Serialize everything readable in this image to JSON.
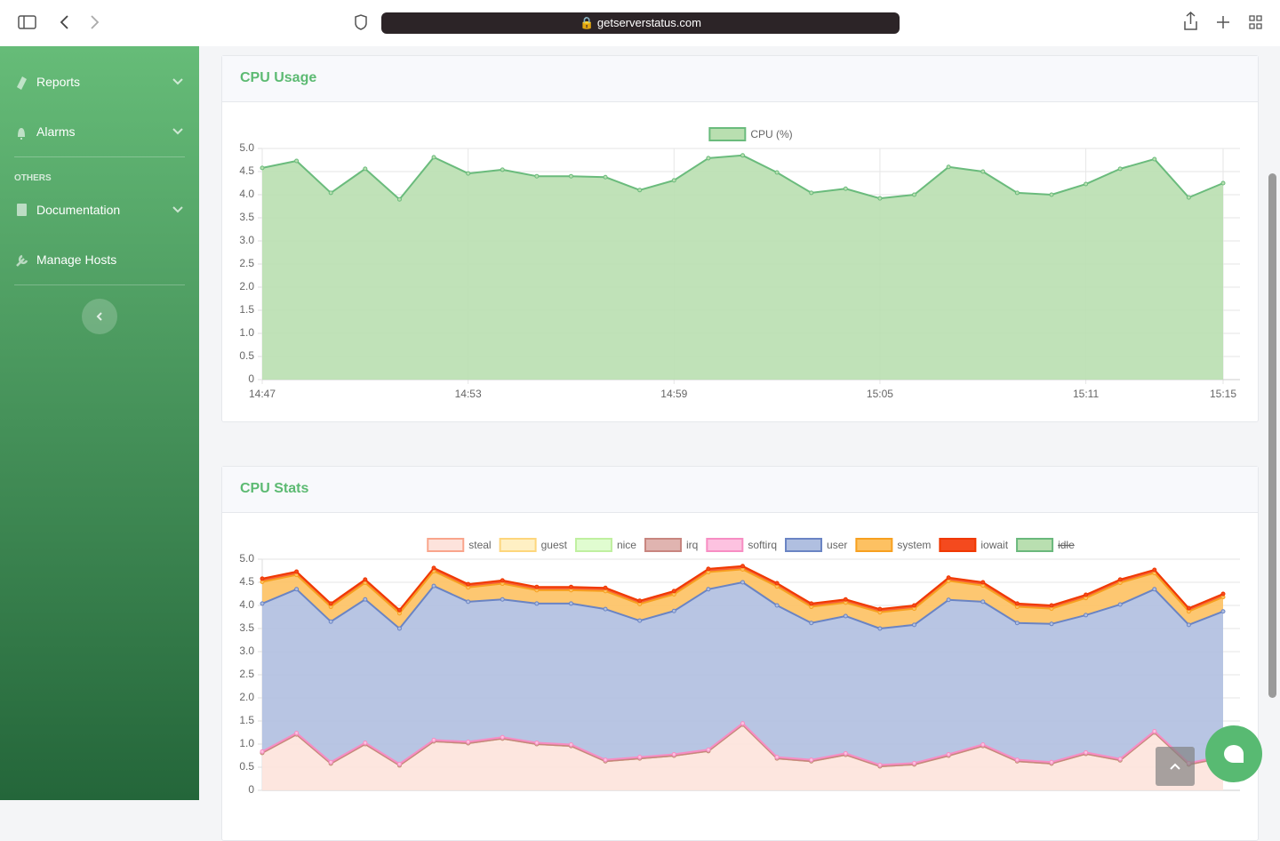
{
  "browser": {
    "url": "getserverstatus.com"
  },
  "sidebar": {
    "items": [
      {
        "label": "Reports"
      },
      {
        "label": "Alarms"
      }
    ],
    "section": "OTHERS",
    "others": [
      {
        "label": "Documentation"
      },
      {
        "label": "Manage Hosts"
      }
    ]
  },
  "chart_data": [
    {
      "type": "area",
      "title": "CPU Usage",
      "categories": [
        "14:47",
        null,
        null,
        null,
        null,
        null,
        "14:53",
        null,
        null,
        null,
        null,
        null,
        "14:59",
        null,
        null,
        null,
        null,
        null,
        "15:05",
        null,
        null,
        null,
        null,
        null,
        "15:11",
        null,
        null,
        null,
        "15:15"
      ],
      "series": [
        {
          "name": "CPU (%)",
          "color": "#6abb7c",
          "fill": "#b9dfb0",
          "values": [
            4.58,
            4.73,
            4.04,
            4.56,
            3.9,
            4.81,
            4.46,
            4.54,
            4.4,
            4.4,
            4.38,
            4.1,
            4.31,
            4.79,
            4.85,
            4.48,
            4.04,
            4.13,
            3.92,
            4.0,
            4.6,
            4.5,
            4.04,
            4.0,
            4.23,
            4.56,
            4.77,
            3.94,
            4.25
          ]
        }
      ],
      "ylim": [
        0,
        5
      ],
      "yticks": [
        0,
        0.5,
        {
          "value": 1,
          "label": "1.0"
        },
        1.5,
        {
          "value": 2,
          "label": "2.0"
        },
        2.5,
        {
          "value": 3,
          "label": "3.0"
        },
        3.5,
        {
          "value": 4,
          "label": "4.0"
        },
        4.5,
        {
          "value": 5,
          "label": "5.0"
        }
      ],
      "grid": true,
      "legend": "top"
    },
    {
      "type": "stacked_area",
      "title": "CPU Stats",
      "series": [
        {
          "name": "steal",
          "color": "#f9a58c",
          "fill": "#fde3dc",
          "values": [
            0.81,
            1.21,
            0.58,
            1.0,
            0.54,
            1.06,
            1.02,
            1.12,
            1.0,
            0.96,
            0.63,
            0.69,
            0.75,
            0.85,
            1.42,
            0.69,
            0.63,
            0.77,
            0.52,
            0.56,
            0.75,
            0.96,
            0.63,
            0.58,
            0.79,
            0.65,
            1.25,
            0.56,
            0.71
          ]
        },
        {
          "name": "guest",
          "color": "#fdd67c",
          "fill": "#fff0c4",
          "values": [
            0,
            0,
            0,
            0,
            0,
            0,
            0,
            0,
            0,
            0,
            0,
            0,
            0,
            0,
            0,
            0,
            0,
            0,
            0,
            0,
            0,
            0,
            0,
            0,
            0,
            0,
            0,
            0,
            0
          ]
        },
        {
          "name": "nice",
          "color": "#c0f0a0",
          "fill": "#e0fcd0",
          "values": [
            0,
            0,
            0,
            0,
            0,
            0,
            0,
            0,
            0,
            0,
            0,
            0,
            0,
            0,
            0,
            0,
            0,
            0,
            0,
            0,
            0,
            0,
            0,
            0,
            0,
            0,
            0,
            0,
            0
          ]
        },
        {
          "name": "irq",
          "color": "#c8857f",
          "fill": "#e0b4b0",
          "values": [
            0,
            0,
            0,
            0,
            0,
            0,
            0,
            0,
            0,
            0,
            0,
            0,
            0,
            0,
            0,
            0,
            0,
            0,
            0,
            0,
            0,
            0,
            0,
            0,
            0,
            0,
            0,
            0,
            0
          ]
        },
        {
          "name": "softirq",
          "color": "#f78dc3",
          "fill": "#fdc2e0",
          "values": [
            0.03,
            0.03,
            0.03,
            0.03,
            0.03,
            0.03,
            0.03,
            0.03,
            0.03,
            0.03,
            0.03,
            0.03,
            0.03,
            0.03,
            0.03,
            0.03,
            0.03,
            0.03,
            0.03,
            0.03,
            0.03,
            0.03,
            0.03,
            0.03,
            0.03,
            0.03,
            0.03,
            0.03,
            0.03
          ]
        },
        {
          "name": "user",
          "color": "#6a84c4",
          "fill": "#b0bfe0",
          "values": [
            3.2,
            3.11,
            3.04,
            3.1,
            2.93,
            3.33,
            3.03,
            2.98,
            3.01,
            3.05,
            3.26,
            2.95,
            3.1,
            3.47,
            3.05,
            3.28,
            2.96,
            2.97,
            2.95,
            2.99,
            3.34,
            3.09,
            2.96,
            2.99,
            2.97,
            3.34,
            3.07,
            2.99,
            3.13
          ]
        },
        {
          "name": "system",
          "color": "#f7a020",
          "fill": "#fdc162",
          "values": [
            0.47,
            0.31,
            0.32,
            0.36,
            0.33,
            0.32,
            0.31,
            0.34,
            0.29,
            0.29,
            0.39,
            0.36,
            0.36,
            0.37,
            0.28,
            0.41,
            0.35,
            0.29,
            0.35,
            0.35,
            0.41,
            0.35,
            0.35,
            0.33,
            0.37,
            0.47,
            0.35,
            0.29,
            0.31
          ]
        },
        {
          "name": "iowait",
          "color": "#f03800",
          "fill": "#f44a1e",
          "values": [
            0.07,
            0.07,
            0.07,
            0.07,
            0.07,
            0.07,
            0.07,
            0.07,
            0.07,
            0.07,
            0.07,
            0.07,
            0.07,
            0.07,
            0.07,
            0.07,
            0.07,
            0.07,
            0.07,
            0.07,
            0.07,
            0.07,
            0.07,
            0.07,
            0.07,
            0.07,
            0.07,
            0.07,
            0.07
          ]
        },
        {
          "name": "idle",
          "color": "#6ab87c",
          "fill": "#b9dfb0",
          "hidden": true
        }
      ],
      "ylim": [
        0,
        5
      ],
      "yticks": [
        0,
        0.5,
        {
          "value": 1,
          "label": "1.0"
        },
        1.5,
        {
          "value": 2,
          "label": "2.0"
        },
        2.5,
        {
          "value": 3,
          "label": "3.0"
        },
        3.5,
        {
          "value": 4,
          "label": "4.0"
        },
        4.5,
        {
          "value": 5,
          "label": "5.0"
        }
      ],
      "grid": true,
      "legend": "top"
    }
  ]
}
